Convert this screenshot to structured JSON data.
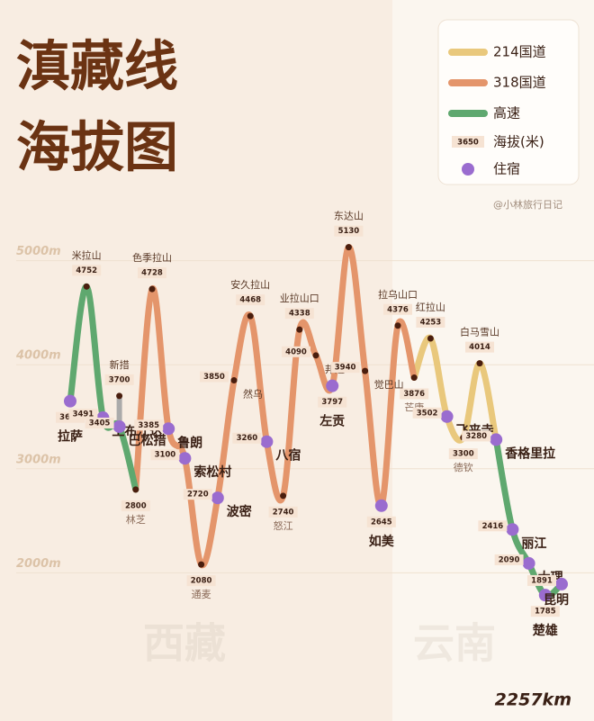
{
  "chart_data": {
    "type": "line",
    "title": [
      "滇藏线",
      "海拔图"
    ],
    "source": "@小林旅行日记",
    "regions": [
      "西藏",
      "云南"
    ],
    "distance": "2257km",
    "legend": {
      "altitude": "海拔(米)",
      "altitude_sample": "3650",
      "lodging": "住宿"
    },
    "categories": [
      "拉萨",
      "米拉山",
      "工布江达",
      "巴松措",
      "林芝",
      "色季拉山",
      "鲁朗",
      "索松村",
      "通麦",
      "波密",
      "然乌",
      "安久拉山",
      "八宿",
      "怒江",
      "业拉山口",
      "邦达",
      "左贡",
      "东达山",
      "觉巴山",
      "如美",
      "拉乌山口",
      "芒康",
      "红拉山",
      "飞来寺",
      "德钦",
      "白马雪山",
      "香格里拉",
      "丽江",
      "大理",
      "楚雄",
      "昆明"
    ],
    "lodging": [
      true,
      false,
      true,
      true,
      false,
      false,
      true,
      true,
      false,
      true,
      false,
      false,
      true,
      false,
      false,
      false,
      true,
      false,
      false,
      true,
      false,
      false,
      false,
      true,
      false,
      false,
      true,
      true,
      true,
      true,
      true
    ],
    "lodging_color": "#9a6ccf",
    "series": [
      {
        "name": "214国道",
        "color": "#e9c87c",
        "values": [
          null,
          null,
          null,
          null,
          null,
          null,
          null,
          null,
          null,
          null,
          null,
          null,
          null,
          null,
          null,
          null,
          null,
          null,
          null,
          null,
          null,
          3876,
          4253,
          3502,
          3300,
          4014,
          3280,
          null,
          null,
          null,
          null
        ]
      },
      {
        "name": "318国道",
        "color": "#e4956b",
        "values": [
          null,
          null,
          null,
          null,
          2800,
          4728,
          3385,
          3100,
          2080,
          2720,
          3850,
          4468,
          3260,
          2740,
          4338,
          4090,
          3797,
          5130,
          3940,
          2645,
          4376,
          3876,
          null,
          null,
          null,
          null,
          null,
          null,
          null,
          null,
          null
        ]
      },
      {
        "name": "高速",
        "color": "#5fa86f",
        "values": [
          3650,
          4752,
          3491,
          3405,
          2800,
          null,
          null,
          null,
          null,
          null,
          null,
          null,
          null,
          null,
          null,
          null,
          null,
          null,
          null,
          null,
          null,
          null,
          null,
          null,
          null,
          null,
          3280,
          2416,
          2090,
          1785,
          1891
        ]
      }
    ],
    "branch": {
      "name": "新措",
      "value": 3700,
      "from": "巴松措",
      "color": "#aaaaaa"
    },
    "ylim": [
      1700,
      5300
    ],
    "yticks": [
      {
        "value": 2000,
        "label": "2000m"
      },
      {
        "value": 3000,
        "label": "3000m"
      },
      {
        "value": 4000,
        "label": "4000m"
      },
      {
        "value": 5000,
        "label": "5000m"
      }
    ],
    "grid": true
  }
}
